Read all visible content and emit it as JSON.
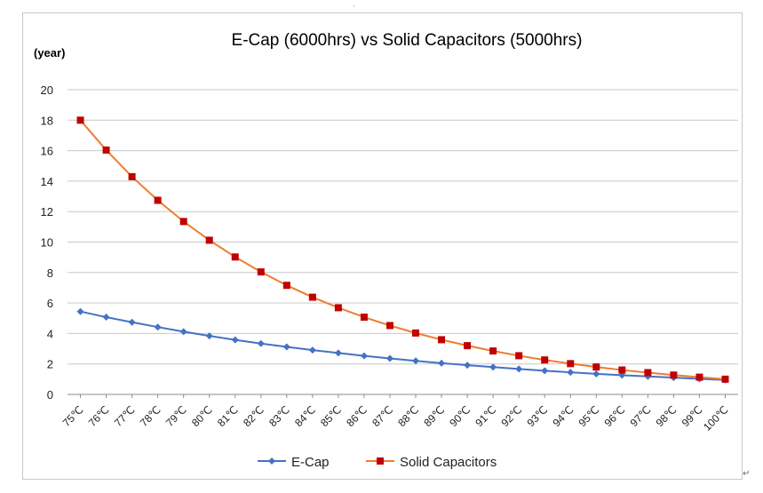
{
  "chart_data": {
    "type": "line",
    "title": "E-Cap (6000hrs) vs Solid Capacitors (5000hrs)",
    "ylabel": "(year)",
    "xlabel": "",
    "ylim": [
      0,
      20
    ],
    "yticks": [
      0,
      2,
      4,
      6,
      8,
      10,
      12,
      14,
      16,
      18,
      20
    ],
    "grid": true,
    "legend_position": "bottom",
    "categories": [
      "75℃",
      "76℃",
      "77℃",
      "78℃",
      "79℃",
      "80℃",
      "81℃",
      "82℃",
      "83℃",
      "84℃",
      "85℃",
      "86℃",
      "87℃",
      "88℃",
      "89℃",
      "90℃",
      "91℃",
      "92℃",
      "93℃",
      "94℃",
      "95℃",
      "96℃",
      "97℃",
      "98℃",
      "99℃",
      "100℃"
    ],
    "series": [
      {
        "name": "E-Cap",
        "color": "#4472C4",
        "marker": "diamond",
        "values": [
          5.44,
          5.07,
          4.74,
          4.42,
          4.12,
          3.84,
          3.58,
          3.34,
          3.12,
          2.91,
          2.72,
          2.53,
          2.36,
          2.2,
          2.05,
          1.92,
          1.79,
          1.67,
          1.55,
          1.45,
          1.35,
          1.26,
          1.18,
          1.1,
          1.02,
          0.95
        ]
      },
      {
        "name": "Solid Capacitors",
        "color": "#ED7D31",
        "marker_color": "#C00000",
        "marker": "square",
        "values": [
          18.0,
          16.04,
          14.29,
          12.74,
          11.35,
          10.12,
          9.02,
          8.04,
          7.16,
          6.38,
          5.69,
          5.07,
          4.52,
          4.03,
          3.59,
          3.2,
          2.85,
          2.54,
          2.26,
          2.02,
          1.8,
          1.6,
          1.43,
          1.27,
          1.13,
          1.0
        ]
      }
    ]
  }
}
